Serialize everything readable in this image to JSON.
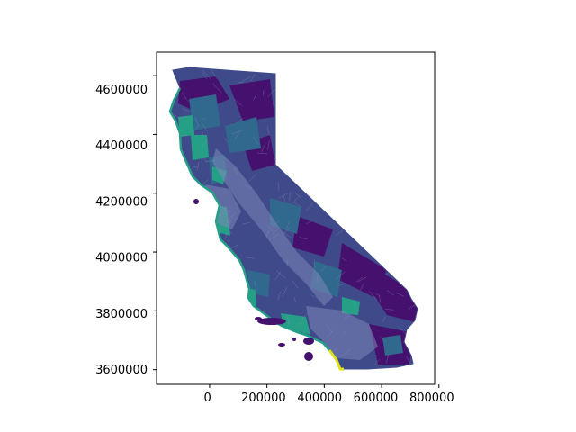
{
  "colors": {
    "frame": "#000000",
    "land_base": "#3f4a8a",
    "land_dark": "#46116e",
    "land_mid": "#31688e",
    "land_teal": "#25a087",
    "coast_yellow": "#dde318",
    "boundary": "#8f8fb8",
    "urban": "#7e86b8",
    "background": "#ffffff"
  },
  "map": {
    "subject": "california-census-tracts-choropleth",
    "colormap": "viridis"
  },
  "chart_data": {
    "type": "choropleth",
    "title": "",
    "xlabel": "",
    "ylabel": "",
    "xlim": [
      -185000,
      785000
    ],
    "ylim": [
      3550000,
      4680000
    ],
    "x_ticks": [
      0,
      200000,
      400000,
      600000,
      800000
    ],
    "y_ticks": [
      3600000,
      3800000,
      4000000,
      4200000,
      4400000,
      4600000
    ],
    "x_tick_labels": [
      "0",
      "200000",
      "400000",
      "600000",
      "800000"
    ],
    "y_tick_labels": [
      "3600000",
      "3800000",
      "4000000",
      "4200000",
      "4400000",
      "4600000"
    ],
    "grid": false,
    "legend": "none"
  }
}
